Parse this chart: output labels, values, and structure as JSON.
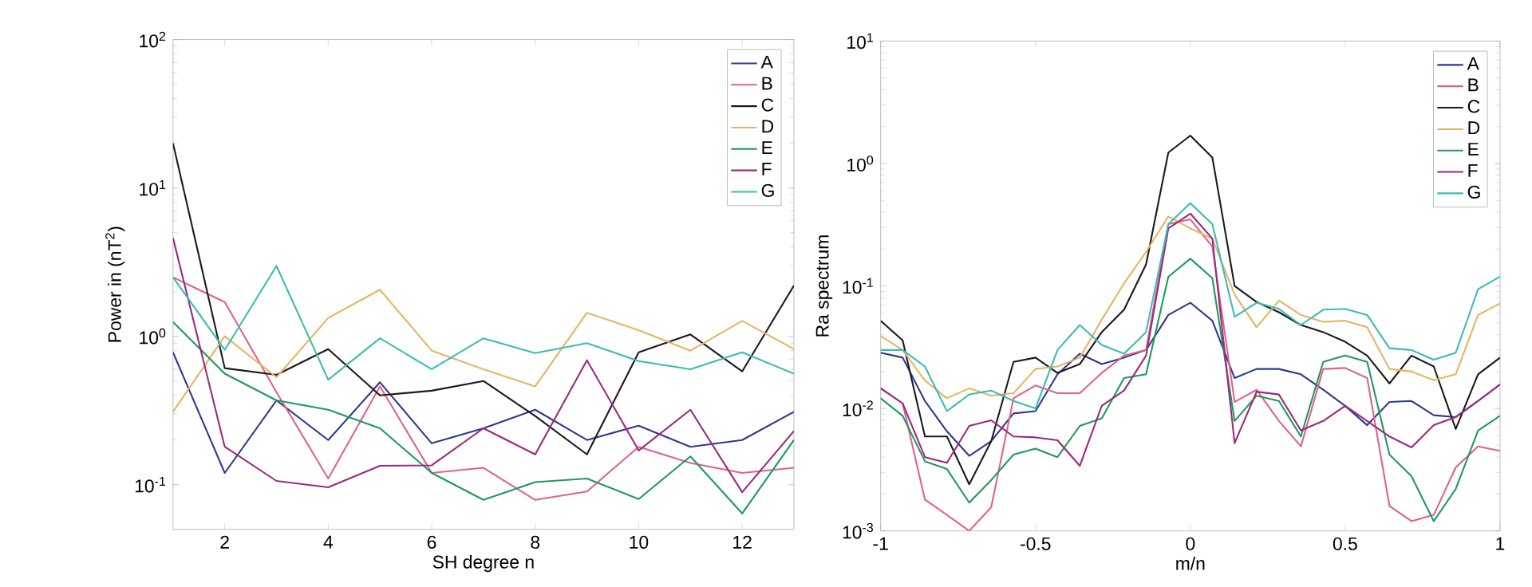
{
  "chart_data": [
    {
      "type": "line",
      "xlabel": "SH degree n",
      "ylabel": "Power in (nT$^{2}$)",
      "log": "y",
      "legend": "top right",
      "grid": false,
      "x": [
        1,
        2,
        3,
        4,
        5,
        6,
        7,
        8,
        9,
        10,
        11,
        12,
        13
      ],
      "xlim": [
        1,
        13
      ],
      "xticks": [
        2,
        4,
        6,
        8,
        10,
        12
      ],
      "ylim": [
        0.05,
        100
      ],
      "yticks": [
        {
          "value": 0.1,
          "label": "10$^{-1}$"
        },
        {
          "value": 1,
          "label": "10$^{0}$"
        },
        {
          "value": 10,
          "label": "10$^{1}$"
        },
        {
          "value": 100,
          "label": "10$^{2}$"
        }
      ],
      "series": [
        {
          "name": "A",
          "color": "#2e3a8c",
          "values": [
            0.78,
            0.12,
            0.37,
            0.2,
            0.49,
            0.19,
            0.24,
            0.32,
            0.2,
            0.25,
            0.18,
            0.2,
            0.31
          ]
        },
        {
          "name": "B",
          "color": "#e0628a",
          "values": [
            2.5,
            1.7,
            0.42,
            0.11,
            0.46,
            0.12,
            0.13,
            0.079,
            0.09,
            0.18,
            0.14,
            0.12,
            0.13
          ]
        },
        {
          "name": "C",
          "color": "#1a1a1a",
          "values": [
            20,
            0.61,
            0.55,
            0.82,
            0.4,
            0.43,
            0.5,
            0.29,
            0.16,
            0.78,
            1.03,
            0.58,
            2.2
          ]
        },
        {
          "name": "D",
          "color": "#e8b462",
          "values": [
            0.31,
            1.0,
            0.53,
            1.33,
            2.06,
            0.8,
            0.6,
            0.46,
            1.44,
            1.1,
            0.8,
            1.27,
            0.82
          ]
        },
        {
          "name": "E",
          "color": "#1e9a5a",
          "values": [
            1.25,
            0.56,
            0.37,
            0.32,
            0.24,
            0.12,
            0.079,
            0.104,
            0.11,
            0.08,
            0.155,
            0.064,
            0.2
          ]
        },
        {
          "name": "F",
          "color": "#9a2a80",
          "values": [
            4.6,
            0.18,
            0.106,
            0.096,
            0.134,
            0.135,
            0.24,
            0.16,
            0.69,
            0.17,
            0.32,
            0.089,
            0.23
          ]
        },
        {
          "name": "G",
          "color": "#3cbcb4",
          "values": [
            2.5,
            0.81,
            2.98,
            0.51,
            0.97,
            0.6,
            0.97,
            0.77,
            0.9,
            0.68,
            0.6,
            0.78,
            0.56
          ]
        }
      ]
    },
    {
      "type": "line",
      "xlabel": "m/n",
      "ylabel": "Ra spectrum",
      "log": "y",
      "legend": "top right",
      "grid": false,
      "x": [
        -1,
        -0.929,
        -0.857,
        -0.786,
        -0.714,
        -0.643,
        -0.571,
        -0.5,
        -0.429,
        -0.357,
        -0.286,
        -0.214,
        -0.143,
        -0.071,
        0,
        0.071,
        0.143,
        0.214,
        0.286,
        0.357,
        0.429,
        0.5,
        0.571,
        0.643,
        0.714,
        0.786,
        0.857,
        0.929,
        1
      ],
      "xlim": [
        -1,
        1
      ],
      "xticks": [
        -1,
        -0.5,
        0,
        0.5,
        1
      ],
      "ylim": [
        0.001,
        10
      ],
      "yticks": [
        {
          "value": 0.001,
          "label": "10$^{-3}$"
        },
        {
          "value": 0.01,
          "label": "10$^{-2}$"
        },
        {
          "value": 0.1,
          "label": "10$^{-1}$"
        },
        {
          "value": 1,
          "label": "10$^{0}$"
        },
        {
          "value": 10,
          "label": "10$^{1}$"
        }
      ],
      "series": [
        {
          "name": "A",
          "color": "#2e3a8c",
          "values": [
            0.0285,
            0.026,
            0.0115,
            0.0065,
            0.0041,
            0.0054,
            0.0091,
            0.0095,
            0.019,
            0.028,
            0.023,
            0.026,
            0.03,
            0.058,
            0.073,
            0.052,
            0.0177,
            0.021,
            0.021,
            0.019,
            0.0142,
            0.0105,
            0.0073,
            0.0113,
            0.0115,
            0.0088,
            0.0085,
            0.0115,
            0.0157
          ]
        },
        {
          "name": "B",
          "color": "#e0628a",
          "values": [
            0.0146,
            0.011,
            0.0018,
            0.00135,
            0.001,
            0.00156,
            0.0121,
            0.0154,
            0.0133,
            0.0133,
            0.0195,
            0.027,
            0.03,
            0.32,
            0.35,
            0.21,
            0.0113,
            0.0142,
            0.0079,
            0.0049,
            0.021,
            0.0214,
            0.0177,
            0.0016,
            0.0012,
            0.00135,
            0.0033,
            0.0049,
            0.0045
          ]
        },
        {
          "name": "C",
          "color": "#1a1a1a",
          "values": [
            0.052,
            0.036,
            0.0059,
            0.0059,
            0.0024,
            0.0054,
            0.024,
            0.026,
            0.0195,
            0.023,
            0.042,
            0.064,
            0.15,
            1.23,
            1.69,
            1.12,
            0.1,
            0.074,
            0.061,
            0.048,
            0.042,
            0.035,
            0.027,
            0.016,
            0.027,
            0.022,
            0.0068,
            0.019,
            0.026
          ]
        },
        {
          "name": "D",
          "color": "#e8b462",
          "values": [
            0.039,
            0.03,
            0.0169,
            0.0121,
            0.0146,
            0.0127,
            0.0133,
            0.021,
            0.022,
            0.026,
            0.053,
            0.105,
            0.19,
            0.37,
            0.295,
            0.244,
            0.085,
            0.046,
            0.076,
            0.058,
            0.051,
            0.052,
            0.046,
            0.021,
            0.02,
            0.017,
            0.019,
            0.058,
            0.072
          ]
        },
        {
          "name": "E",
          "color": "#1e9a5a",
          "values": [
            0.0121,
            0.0087,
            0.0037,
            0.0032,
            0.0017,
            0.0026,
            0.0042,
            0.0047,
            0.004,
            0.0072,
            0.0083,
            0.0177,
            0.019,
            0.119,
            0.167,
            0.116,
            0.0079,
            0.0127,
            0.0115,
            0.0059,
            0.024,
            0.027,
            0.024,
            0.0042,
            0.0028,
            0.0012,
            0.0022,
            0.0066,
            0.0087
          ]
        },
        {
          "name": "F",
          "color": "#9a2a80",
          "values": [
            0.0146,
            0.011,
            0.004,
            0.0036,
            0.0072,
            0.008,
            0.0059,
            0.0058,
            0.0055,
            0.0034,
            0.0105,
            0.014,
            0.027,
            0.295,
            0.39,
            0.244,
            0.0052,
            0.0137,
            0.013,
            0.0066,
            0.0079,
            0.0105,
            0.0079,
            0.0059,
            0.0048,
            0.0073,
            0.0085,
            0.0115,
            0.0157
          ]
        },
        {
          "name": "G",
          "color": "#3cbcb4",
          "values": [
            0.03,
            0.03,
            0.022,
            0.0095,
            0.013,
            0.014,
            0.0115,
            0.01,
            0.03,
            0.048,
            0.033,
            0.028,
            0.042,
            0.32,
            0.475,
            0.32,
            0.056,
            0.073,
            0.065,
            0.048,
            0.064,
            0.065,
            0.058,
            0.031,
            0.03,
            0.025,
            0.0285,
            0.094,
            0.119
          ]
        }
      ]
    }
  ]
}
